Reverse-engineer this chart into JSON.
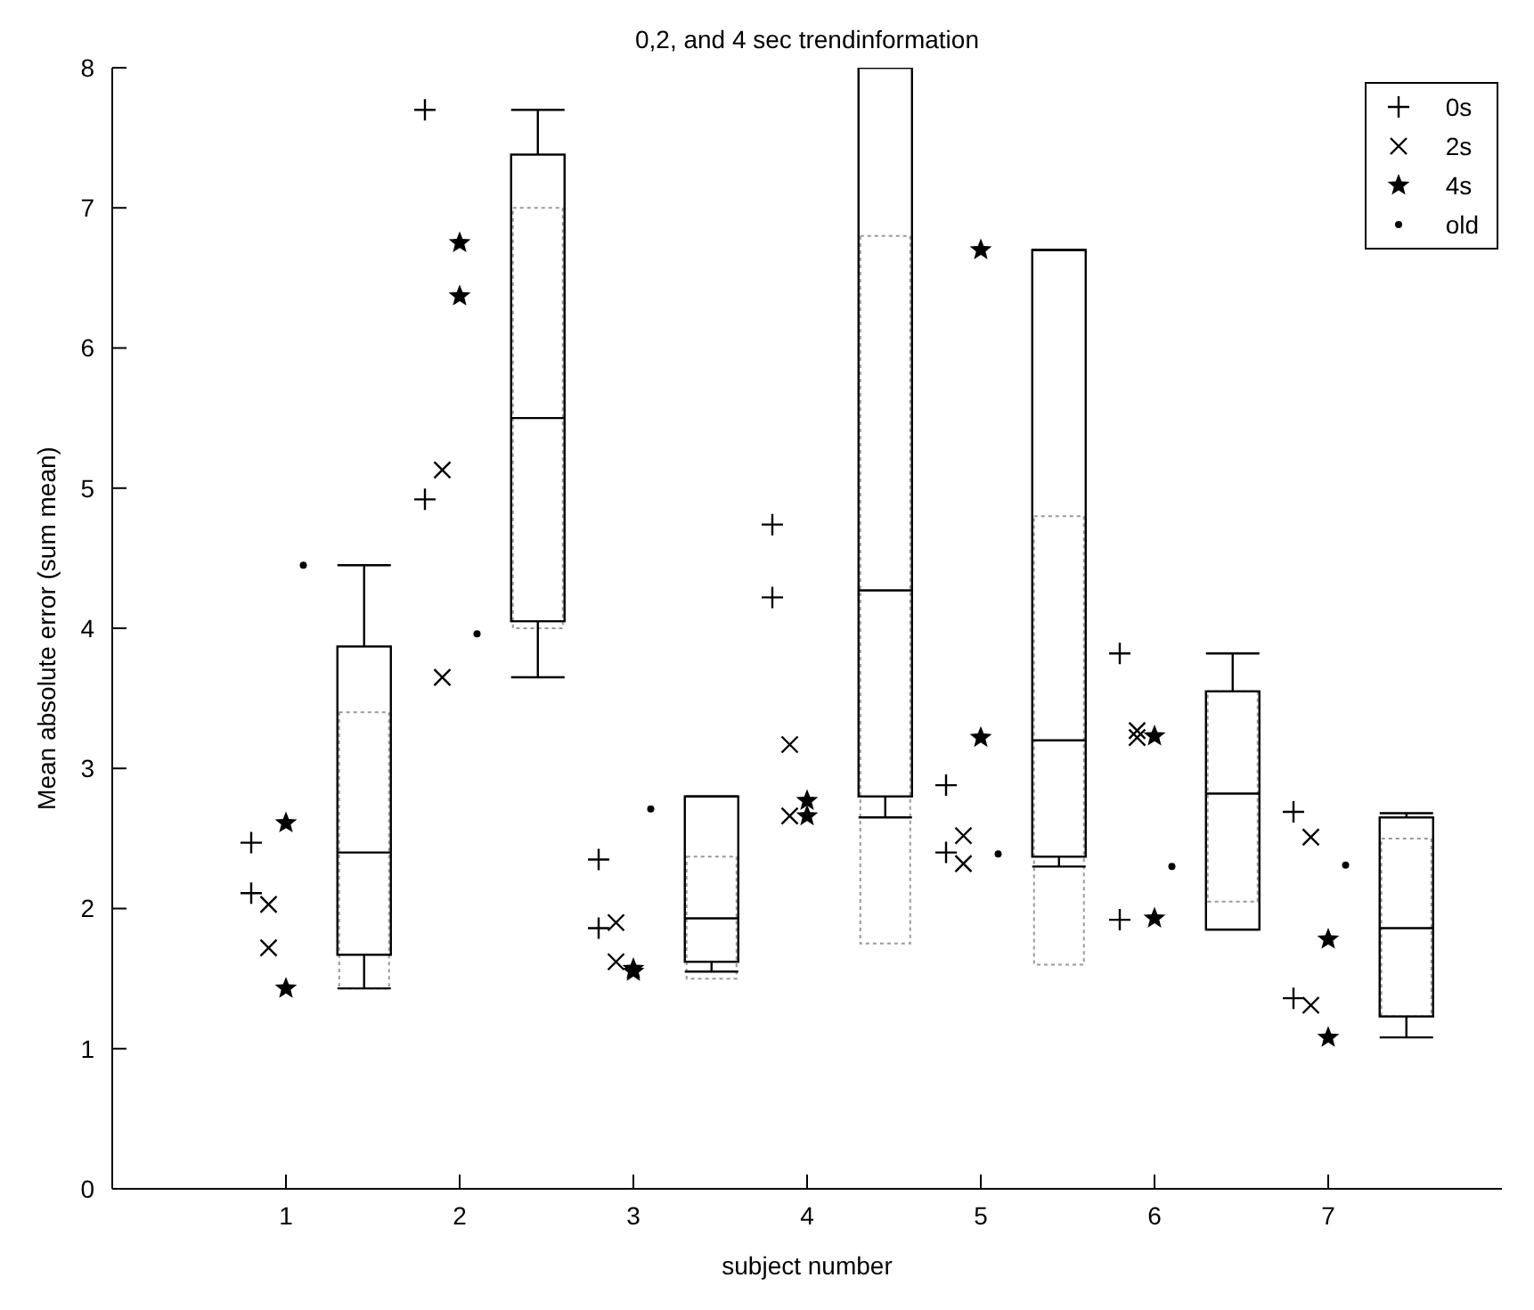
{
  "chart_data": {
    "type": "scatter",
    "title": "0,2, and 4 sec trendinformation",
    "xlabel": "subject number",
    "ylabel": "Mean absolute error (sum mean)",
    "xlim": [
      0,
      8
    ],
    "xticks": [
      1,
      2,
      3,
      4,
      5,
      6,
      7
    ],
    "ylim": [
      0,
      8
    ],
    "yticks": [
      0,
      1,
      2,
      3,
      4,
      5,
      6,
      7,
      8
    ],
    "legend": "top right",
    "series": [
      {
        "name": "0s",
        "marker": "plus",
        "color": "#000000",
        "x": [
          0.8,
          0.8,
          1.8,
          1.8,
          2.8,
          2.8,
          3.8,
          3.8,
          4.8,
          4.8,
          5.8,
          5.8,
          6.8,
          6.8
        ],
        "values": [
          2.47,
          2.11,
          7.7,
          4.92,
          2.35,
          1.86,
          4.74,
          4.22,
          2.88,
          2.4,
          3.82,
          1.92,
          2.69,
          1.36
        ]
      },
      {
        "name": "2s",
        "marker": "cross",
        "color": "#000000",
        "x": [
          0.9,
          0.9,
          1.9,
          1.9,
          2.9,
          2.9,
          3.9,
          3.9,
          4.9,
          4.9,
          5.9,
          5.9,
          6.9,
          6.9
        ],
        "values": [
          2.03,
          1.72,
          5.13,
          3.65,
          1.9,
          1.62,
          3.17,
          2.66,
          2.52,
          2.32,
          3.27,
          3.22,
          2.51,
          1.31
        ]
      },
      {
        "name": "4s",
        "marker": "star",
        "color": "#000000",
        "x": [
          1,
          1,
          2,
          2,
          3,
          3,
          4,
          4,
          5,
          5,
          6,
          6,
          7,
          7
        ],
        "values": [
          2.61,
          1.43,
          6.75,
          6.37,
          1.57,
          1.55,
          2.77,
          2.66,
          6.7,
          3.22,
          3.23,
          1.93,
          1.78,
          1.08
        ]
      },
      {
        "name": "old",
        "marker": "circle",
        "color": "#000000",
        "x": [
          1.1,
          2.1,
          3.1,
          5.1,
          6.1,
          7.1
        ],
        "values": [
          4.45,
          3.96,
          2.71,
          2.39,
          2.3,
          2.31
        ]
      },
      {
        "type": "bar",
        "line_style": "dotted",
        "color": "#999999",
        "x": [
          1.45,
          2.45,
          3.45,
          4.45,
          5.45,
          6.45,
          7.45
        ],
        "base": [
          1.43,
          4.0,
          1.5,
          1.75,
          1.6,
          2.05,
          1.23
        ],
        "values": [
          1.97,
          3.0,
          0.87,
          5.05,
          3.2,
          1.5,
          1.27
        ]
      },
      {
        "type": "box",
        "color": "#000000",
        "x": [
          1.45,
          2.45,
          3.45,
          4.45,
          5.45,
          6.45,
          7.45
        ],
        "boxes": [
          {
            "low": 1.43,
            "q1": 1.67,
            "median": 2.4,
            "q3": 3.87,
            "high": 4.45
          },
          {
            "low": 3.65,
            "q1": 4.05,
            "median": 5.5,
            "q3": 7.38,
            "high": 7.7
          },
          {
            "low": 1.55,
            "q1": 1.62,
            "median": 1.93,
            "q3": 2.8,
            "high": 2.8
          },
          {
            "low": 2.65,
            "q1": 2.8,
            "median": 4.27,
            "q3": 8,
            "high": 8
          },
          {
            "low": 2.3,
            "q1": 2.37,
            "median": 3.2,
            "q3": 6.7,
            "high": 6.7
          },
          {
            "low": 1.85,
            "q1": 1.85,
            "median": 2.82,
            "q3": 3.55,
            "high": 3.82
          },
          {
            "low": 1.08,
            "q1": 1.23,
            "median": 1.86,
            "q3": 2.65,
            "high": 2.68
          }
        ]
      }
    ]
  }
}
